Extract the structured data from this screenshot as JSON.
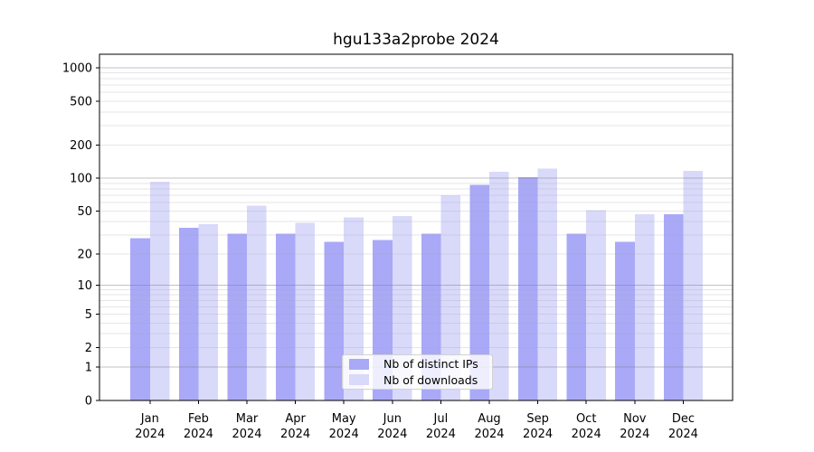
{
  "title": "hgu133a2probe 2024",
  "colors": {
    "bar_distinct_ips": "#a9a9f7",
    "bar_downloads": "#d9d9fa",
    "grid_minor_overlay": "rgba(166,166,178,0.28)",
    "grid_major_overlay": "rgba(120,120,126,0.45)",
    "axis": "#000000",
    "text": "#000000",
    "legend_border": "#d2d2d2",
    "legend_background": "rgba(255,255,255,0.8)"
  },
  "legend": {
    "items": [
      {
        "label": "Nb of distinct IPs",
        "series_index": 0
      },
      {
        "label": "Nb of downloads",
        "series_index": 1
      }
    ]
  },
  "chart_data": {
    "type": "bar",
    "title": "hgu133a2probe 2024",
    "categories": [
      "Jan 2024",
      "Feb 2024",
      "Mar 2024",
      "Apr 2024",
      "May 2024",
      "Jun 2024",
      "Jul 2024",
      "Aug 2024",
      "Sep 2024",
      "Oct 2024",
      "Nov 2024",
      "Dec 2024"
    ],
    "series": [
      {
        "name": "Nb of distinct IPs",
        "color": "#a9a9f7",
        "values": [
          28,
          35,
          31,
          31,
          26,
          27,
          31,
          87,
          102,
          31,
          26,
          47
        ]
      },
      {
        "name": "Nb of downloads",
        "color": "#d9d9fa",
        "values": [
          93,
          38,
          56,
          39,
          44,
          45,
          70,
          115,
          122,
          51,
          47,
          117
        ]
      }
    ],
    "xlabel": "",
    "ylabel": "",
    "y_scale": "log10(1+v)",
    "y_ticks": [
      0,
      1,
      2,
      5,
      10,
      20,
      50,
      100,
      200,
      500,
      1000
    ],
    "ylim": [
      0,
      1327
    ],
    "grid": true,
    "grid_major_at": [
      1,
      10,
      100,
      1000
    ],
    "legend_position": "bottom-center"
  }
}
